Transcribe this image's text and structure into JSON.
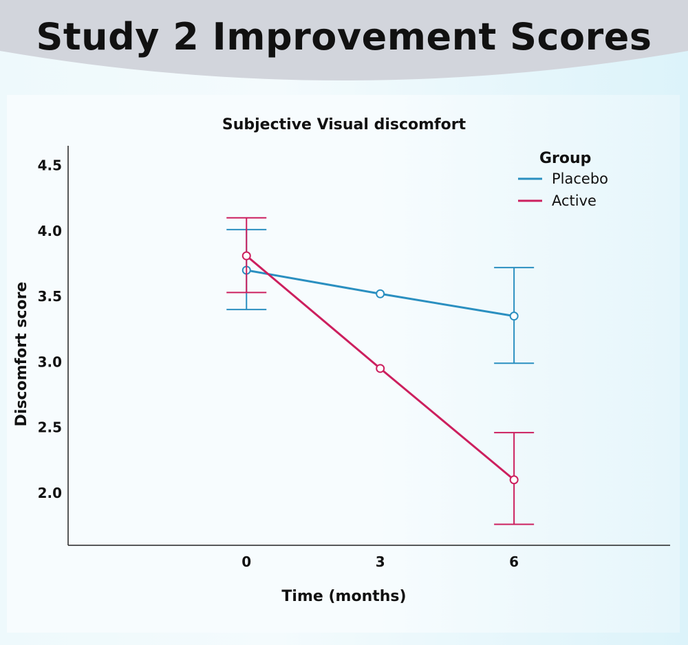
{
  "page": {
    "title": "Study 2 Improvement Scores"
  },
  "colors": {
    "placebo": "#2a8fc0",
    "active": "#cc1f5e"
  },
  "chart_data": {
    "type": "line",
    "title": "Subjective Visual discomfort",
    "xlabel": "Time (months)",
    "ylabel": "Discomfort score",
    "x": [
      0,
      3,
      6
    ],
    "x_tick_labels": [
      "0",
      "3",
      "6"
    ],
    "xlim": [
      -4,
      9.5
    ],
    "ylim": [
      1.6,
      4.65
    ],
    "y_ticks": [
      2.0,
      2.5,
      3.0,
      3.5,
      4.0,
      4.5
    ],
    "y_tick_labels": [
      "2.0",
      "2.5",
      "3.0",
      "3.5",
      "4.0",
      "4.5"
    ],
    "grid": false,
    "legend": {
      "title": "Group",
      "position": "top-right"
    },
    "series": [
      {
        "name": "Placebo",
        "color": "#2a8fc0",
        "values": [
          3.7,
          3.52,
          3.35
        ],
        "error_bars": [
          {
            "x": 0,
            "low": 3.4,
            "high": 4.01
          },
          {
            "x": 6,
            "low": 2.99,
            "high": 3.72
          }
        ]
      },
      {
        "name": "Active",
        "color": "#cc1f5e",
        "values": [
          3.81,
          2.95,
          2.1
        ],
        "error_bars": [
          {
            "x": 0,
            "low": 3.53,
            "high": 4.1
          },
          {
            "x": 6,
            "low": 1.76,
            "high": 2.46
          }
        ]
      }
    ]
  }
}
